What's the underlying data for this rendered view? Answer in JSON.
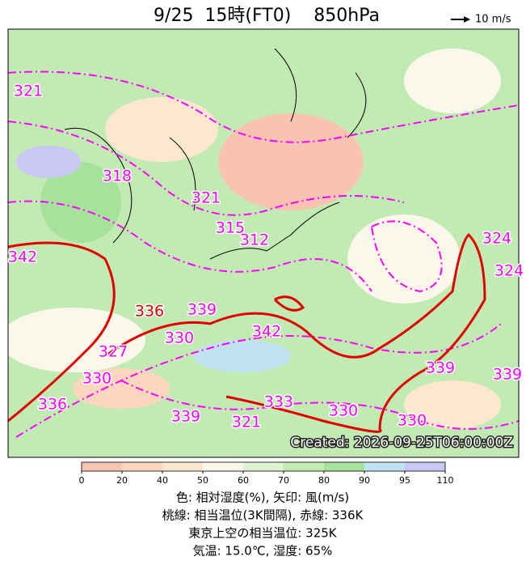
{
  "header": {
    "title": "9/25  15時(FT0)    850hPa",
    "wind_scale": "10 m/s"
  },
  "map": {
    "contour_labels": [
      "321",
      "318",
      "321",
      "315",
      "312",
      "342",
      "336",
      "339",
      "330",
      "342",
      "327",
      "330",
      "336",
      "333",
      "330",
      "330",
      "339",
      "339",
      "339",
      "321",
      "324",
      "324"
    ],
    "created": "Created: 2026-09-25T06:00:00Z"
  },
  "colorbar": {
    "ticks": [
      0,
      20,
      40,
      50,
      60,
      70,
      80,
      90,
      95,
      110
    ],
    "colors": [
      "#f8c3b0",
      "#fcd6bd",
      "#fde8cf",
      "#fbf7ea",
      "#dff3d2",
      "#c2ebb3",
      "#a6e29b",
      "#bfe3f3",
      "#c8c8f2"
    ]
  },
  "caption": [
    "色: 相対湿度(%), 矢印: 風(m/s)",
    "桃線: 相当温位(3K間隔), 赤線: 336K",
    "東京上空の相当温位: 325K",
    "気温: 15.0℃, 湿度: 65%"
  ]
}
